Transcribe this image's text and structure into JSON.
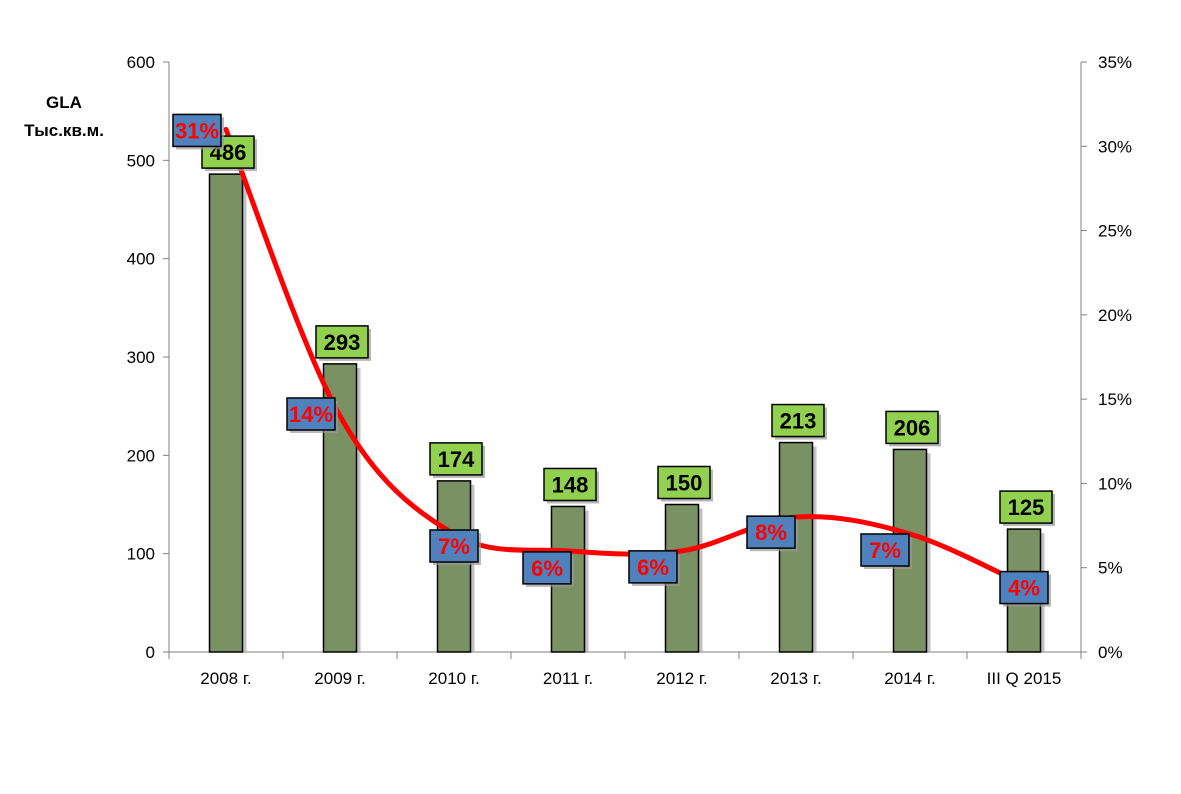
{
  "chart_data": {
    "type": "bar",
    "categories": [
      "2008 г.",
      "2009 г.",
      "2010 г.",
      "2011 г.",
      "2012 г.",
      "2013 г.",
      "2014 г.",
      "III  Q 2015"
    ],
    "series": [
      {
        "values": [
          486,
          293,
          174,
          148,
          150,
          213,
          206,
          125
        ],
        "type": "bar",
        "axis": "left",
        "color": "#7a9163"
      },
      {
        "values": [
          0.31,
          0.14,
          0.07,
          0.06,
          0.06,
          0.08,
          0.07,
          0.04
        ],
        "type": "line",
        "axis": "right",
        "color": "#ff0000"
      }
    ],
    "value_labels": [
      "486",
      "293",
      "174",
      "148",
      "150",
      "213",
      "206",
      "125"
    ],
    "percent_labels": [
      "31%",
      "14%",
      "7%",
      "6%",
      "6%",
      "8%",
      "7%",
      "4%"
    ],
    "ylabel": [
      "GLA",
      "Тыс.кв.м."
    ],
    "ylim": [
      0,
      600
    ],
    "y_ticks": [
      "0",
      "100",
      "200",
      "300",
      "400",
      "500",
      "600"
    ],
    "y2lim": [
      0,
      0.35
    ],
    "y2_ticks": [
      "0%",
      "5%",
      "10%",
      "15%",
      "20%",
      "25%",
      "30%",
      "35%"
    ],
    "grid": false,
    "legend": "none",
    "colors": {
      "bar": "#7a9163",
      "line": "#ff0000",
      "value_label_bg": "#92d050",
      "percent_label_bg": "#4f81bd"
    }
  }
}
